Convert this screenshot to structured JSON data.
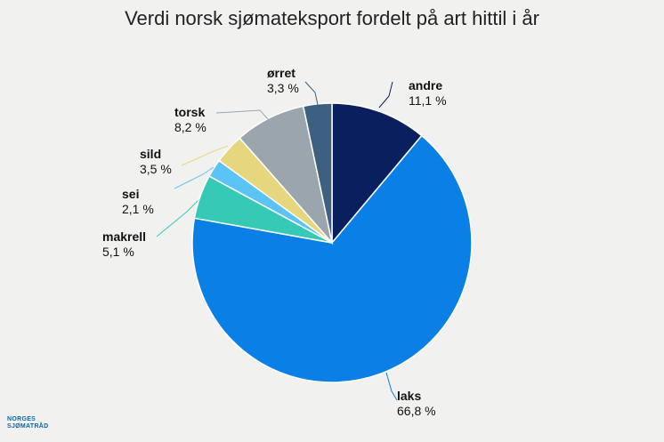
{
  "chart_data": {
    "type": "pie",
    "title": "Verdi norsk sjømateksport fordelt på art hittil i år",
    "slices": [
      {
        "name": "andre",
        "value": 11.1,
        "label": "11,1 %",
        "color": "#0a1f5e"
      },
      {
        "name": "laks",
        "value": 66.8,
        "label": "66,8 %",
        "color": "#0a7fe6"
      },
      {
        "name": "makrell",
        "value": 5.1,
        "label": "5,1 %",
        "color": "#35c9b6"
      },
      {
        "name": "sei",
        "value": 2.1,
        "label": "2,1 %",
        "color": "#5cc3f5"
      },
      {
        "name": "sild",
        "value": 3.5,
        "label": "3,5 %",
        "color": "#e6d77e"
      },
      {
        "name": "torsk",
        "value": 8.2,
        "label": "8,2 %",
        "color": "#9aa5ad"
      },
      {
        "name": "ørret",
        "value": 3.3,
        "label": "3,3 %",
        "color": "#3d5f80"
      }
    ]
  },
  "logo": {
    "line1": "NORGES",
    "line2": "SJØMATRÅD"
  }
}
